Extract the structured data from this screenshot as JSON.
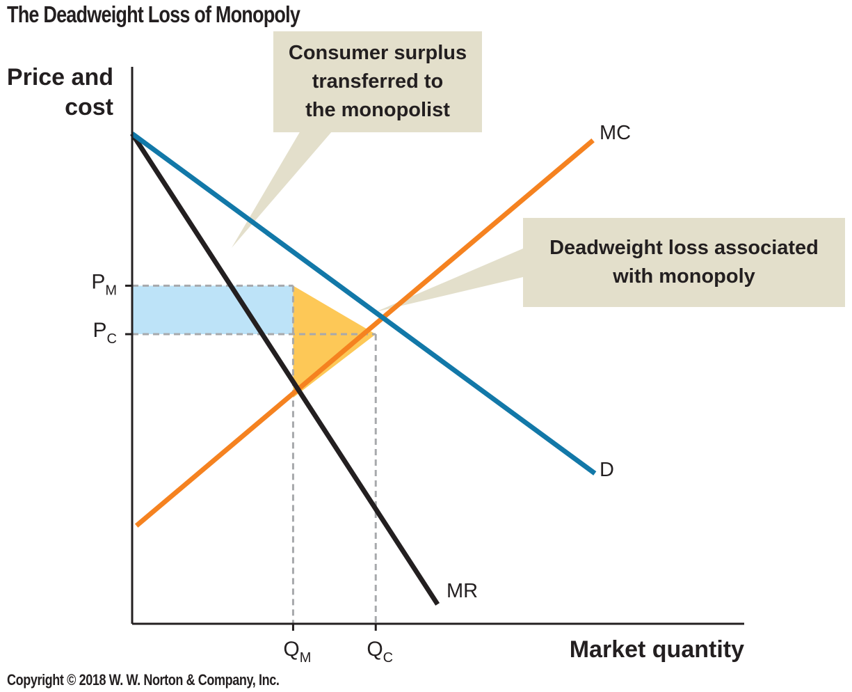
{
  "figure_title": "The Deadweight Loss of Monopoly",
  "copyright": "Copyright © 2018 W. W. Norton & Company, Inc.",
  "colors": {
    "demand": "#1278a8",
    "marginal_revenue": "#231f20",
    "marginal_cost": "#f58220",
    "consumer_surplus_transfer": "#bde3f8",
    "deadweight_loss": "#fdc857",
    "callout_fill": "#e3dfcb",
    "guide_lines": "#a7a9ac"
  },
  "callouts": {
    "consumer_surplus": [
      "Consumer surplus",
      "transferred to",
      "the monopolist"
    ],
    "deadweight_loss": [
      "Deadweight loss associated",
      "with monopoly"
    ]
  },
  "chart_data": {
    "type": "line",
    "title": "The Deadweight Loss of Monopoly",
    "xlabel": "Market quantity",
    "ylabel_lines": [
      "Price and",
      "cost"
    ],
    "xlim": [
      0,
      100
    ],
    "ylim": [
      0,
      100
    ],
    "grid": false,
    "series": [
      {
        "name": "D",
        "points": [
          [
            0,
            88
          ],
          [
            75.6,
            27
          ]
        ]
      },
      {
        "name": "MR",
        "points": [
          [
            0,
            88
          ],
          [
            49.9,
            3.5
          ]
        ]
      },
      {
        "name": "MC",
        "points": [
          [
            0.7,
            17.6
          ],
          [
            75.3,
            86.8
          ]
        ]
      }
    ],
    "x_ticks": [
      {
        "main": "Q",
        "sub": "M",
        "value": 26.3
      },
      {
        "main": "Q",
        "sub": "C",
        "value": 39.8
      }
    ],
    "y_ticks": [
      {
        "main": "P",
        "sub": "M",
        "value": 60.7
      },
      {
        "main": "P",
        "sub": "C",
        "value": 52
      }
    ],
    "areas": [
      {
        "name": "Consumer surplus transferred to the monopolist",
        "polygon": [
          [
            0,
            60.7
          ],
          [
            26.3,
            60.7
          ],
          [
            26.3,
            52
          ],
          [
            0,
            52
          ]
        ]
      },
      {
        "name": "Deadweight loss associated with monopoly",
        "polygon": [
          [
            26.3,
            60.7
          ],
          [
            39.8,
            52
          ],
          [
            26.3,
            40.6
          ]
        ]
      }
    ]
  }
}
